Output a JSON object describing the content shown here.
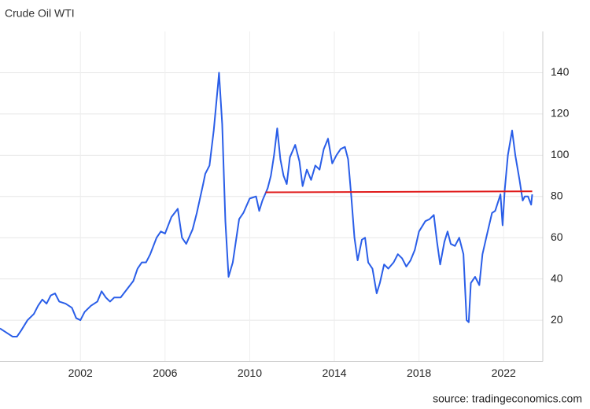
{
  "chart_data": {
    "type": "line",
    "title": "Crude Oil WTI",
    "source": "source: tradingeconomics.com",
    "x": [
      1998.2,
      1998.5,
      1998.8,
      1999.0,
      1999.2,
      1999.5,
      1999.8,
      2000.0,
      2000.2,
      2000.4,
      2000.6,
      2000.8,
      2001.0,
      2001.3,
      2001.6,
      2001.8,
      2002.0,
      2002.2,
      2002.5,
      2002.8,
      2003.0,
      2003.2,
      2003.4,
      2003.6,
      2003.9,
      2004.2,
      2004.5,
      2004.7,
      2004.9,
      2005.1,
      2005.3,
      2005.6,
      2005.8,
      2006.0,
      2006.3,
      2006.6,
      2006.8,
      2007.0,
      2007.3,
      2007.5,
      2007.8,
      2007.9,
      2008.1,
      2008.3,
      2008.5,
      2008.55,
      2008.7,
      2008.85,
      2009.0,
      2009.2,
      2009.4,
      2009.5,
      2009.7,
      2010.0,
      2010.3,
      2010.45,
      2010.6,
      2010.85,
      2011.0,
      2011.15,
      2011.3,
      2011.45,
      2011.6,
      2011.75,
      2011.9,
      2012.15,
      2012.35,
      2012.5,
      2012.7,
      2012.9,
      2013.1,
      2013.3,
      2013.5,
      2013.7,
      2013.9,
      2014.1,
      2014.3,
      2014.5,
      2014.65,
      2014.8,
      2014.95,
      2015.1,
      2015.3,
      2015.45,
      2015.6,
      2015.8,
      2016.0,
      2016.15,
      2016.35,
      2016.55,
      2016.8,
      2017.0,
      2017.2,
      2017.4,
      2017.6,
      2017.8,
      2018.0,
      2018.3,
      2018.5,
      2018.7,
      2018.85,
      2019.0,
      2019.2,
      2019.35,
      2019.5,
      2019.7,
      2019.9,
      2020.1,
      2020.25,
      2020.35,
      2020.45,
      2020.65,
      2020.85,
      2021.0,
      2021.2,
      2021.45,
      2021.6,
      2021.85,
      2021.95,
      2022.05,
      2022.2,
      2022.4,
      2022.55,
      2022.75,
      2022.9,
      2023.0,
      2023.15,
      2023.3,
      2023.35
    ],
    "values": [
      16,
      14,
      12,
      12,
      15,
      20,
      23,
      27,
      30,
      28,
      32,
      33,
      29,
      28,
      26,
      21,
      20,
      24,
      27,
      29,
      34,
      31,
      29,
      31,
      31,
      35,
      39,
      45,
      48,
      48,
      52,
      60,
      63,
      62,
      70,
      74,
      60,
      57,
      64,
      72,
      86,
      91,
      95,
      112,
      134,
      140,
      115,
      68,
      41,
      48,
      62,
      69,
      72,
      79,
      80,
      73,
      78,
      84,
      90,
      100,
      113,
      98,
      90,
      86,
      99,
      105,
      97,
      85,
      93,
      88,
      95,
      93,
      103,
      108,
      96,
      100,
      103,
      104,
      98,
      80,
      60,
      49,
      59,
      60,
      48,
      45,
      33,
      38,
      47,
      45,
      48,
      52,
      50,
      46,
      49,
      54,
      63,
      68,
      69,
      71,
      58,
      47,
      58,
      63,
      57,
      56,
      60,
      52,
      20,
      19,
      38,
      41,
      37,
      52,
      61,
      72,
      73,
      81,
      66,
      83,
      100,
      112,
      100,
      88,
      78,
      80,
      80,
      76,
      81
    ],
    "color": "#2a5ee8",
    "trend_line": {
      "x": [
        2010.75,
        2023.35
      ],
      "values": [
        82,
        82.5
      ],
      "color": "#e01b1b"
    },
    "xlim": [
      1998.2,
      2023.85
    ],
    "xticks": [
      2002,
      2006,
      2010,
      2014,
      2018,
      2022
    ],
    "ylim": [
      0,
      160
    ],
    "yticks": [
      20,
      40,
      60,
      80,
      100,
      120,
      140
    ],
    "grid": true
  }
}
